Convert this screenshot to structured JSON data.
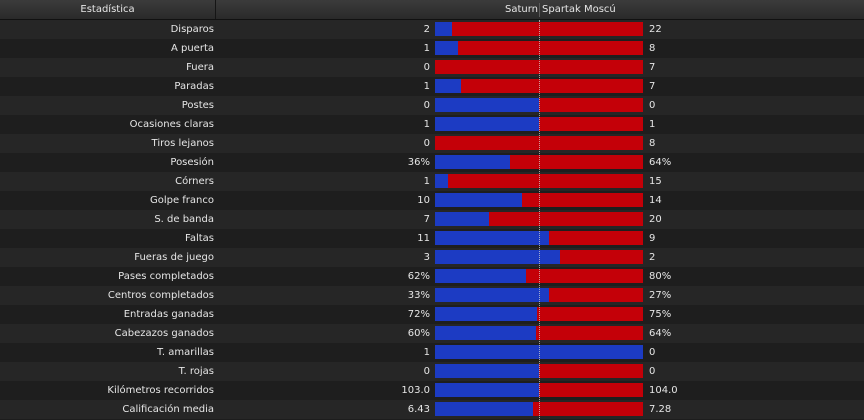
{
  "header": {
    "stat_label": "Estadística",
    "home_team": "Saturn",
    "away_team": "Spartak Moscú"
  },
  "colors": {
    "home": "#1c3bc3",
    "away": "#c40008"
  },
  "stats": [
    {
      "label": "Disparos",
      "home": "2",
      "away": "22",
      "home_share": 0.083
    },
    {
      "label": "A puerta",
      "home": "1",
      "away": "8",
      "home_share": 0.111
    },
    {
      "label": "Fuera",
      "home": "0",
      "away": "7",
      "home_share": 0.0
    },
    {
      "label": "Paradas",
      "home": "1",
      "away": "7",
      "home_share": 0.125
    },
    {
      "label": "Postes",
      "home": "0",
      "away": "0",
      "home_share": 0.5
    },
    {
      "label": "Ocasiones claras",
      "home": "1",
      "away": "1",
      "home_share": 0.5
    },
    {
      "label": "Tiros lejanos",
      "home": "0",
      "away": "8",
      "home_share": 0.0
    },
    {
      "label": "Posesión",
      "home": "36%",
      "away": "64%",
      "home_share": 0.36
    },
    {
      "label": "Córners",
      "home": "1",
      "away": "15",
      "home_share": 0.063
    },
    {
      "label": "Golpe franco",
      "home": "10",
      "away": "14",
      "home_share": 0.417
    },
    {
      "label": "S. de banda",
      "home": "7",
      "away": "20",
      "home_share": 0.259
    },
    {
      "label": "Faltas",
      "home": "11",
      "away": "9",
      "home_share": 0.55
    },
    {
      "label": "Fueras de juego",
      "home": "3",
      "away": "2",
      "home_share": 0.6
    },
    {
      "label": "Pases completados",
      "home": "62%",
      "away": "80%",
      "home_share": 0.437
    },
    {
      "label": "Centros completados",
      "home": "33%",
      "away": "27%",
      "home_share": 0.55
    },
    {
      "label": "Entradas ganadas",
      "home": "72%",
      "away": "75%",
      "home_share": 0.49
    },
    {
      "label": "Cabezazos ganados",
      "home": "60%",
      "away": "64%",
      "home_share": 0.484
    },
    {
      "label": "T. amarillas",
      "home": "1",
      "away": "0",
      "home_share": 1.0
    },
    {
      "label": "T. rojas",
      "home": "0",
      "away": "0",
      "home_share": 0.5
    },
    {
      "label": "Kilómetros recorridos",
      "home": "103.0",
      "away": "104.0",
      "home_share": 0.498
    },
    {
      "label": "Calificación media",
      "home": "6.43",
      "away": "7.28",
      "home_share": 0.469
    }
  ]
}
